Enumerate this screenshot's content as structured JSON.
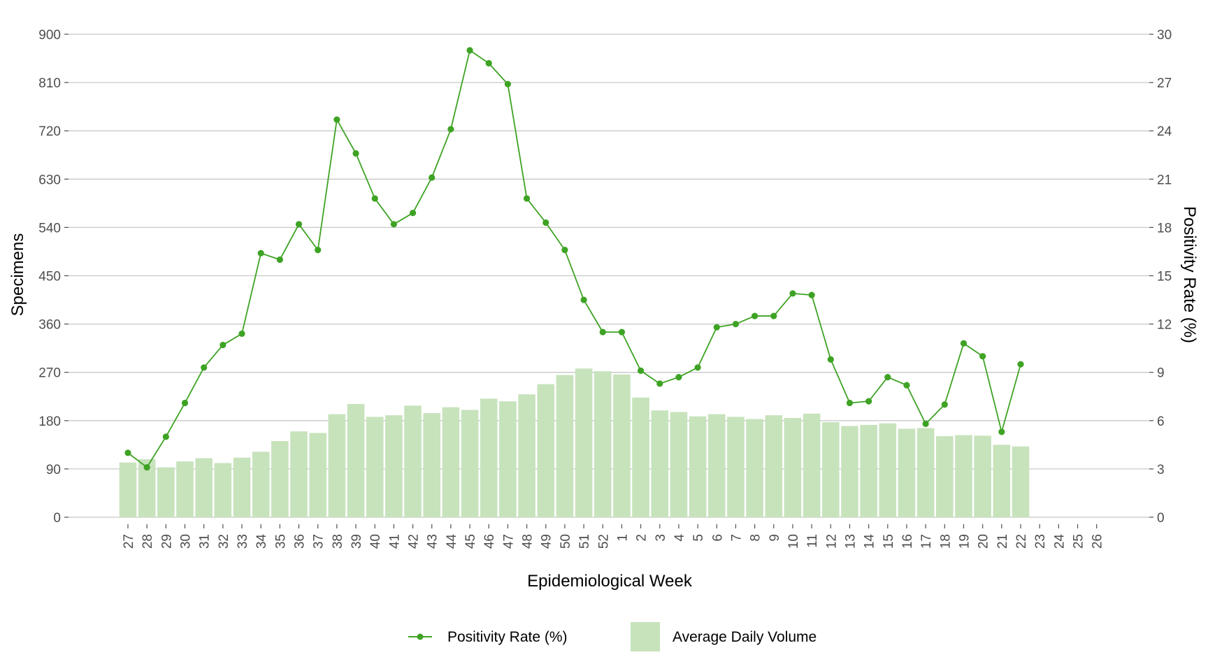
{
  "chart_data": {
    "type": "bar",
    "xlabel": "Epidemiological Week",
    "ylabel_left": "Specimens",
    "ylabel_right": "Positivity Rate (%)",
    "ylim_left": [
      0,
      900
    ],
    "ylim_right": [
      0,
      30
    ],
    "yticks_left": [
      0,
      90,
      180,
      270,
      360,
      450,
      540,
      630,
      720,
      810,
      900
    ],
    "yticks_right": [
      0,
      3,
      6,
      9,
      12,
      15,
      18,
      21,
      24,
      27,
      30
    ],
    "grid": true,
    "legend_position": "bottom",
    "categories": [
      "27",
      "28",
      "29",
      "30",
      "31",
      "32",
      "33",
      "34",
      "35",
      "36",
      "37",
      "38",
      "39",
      "40",
      "41",
      "42",
      "43",
      "44",
      "45",
      "46",
      "47",
      "48",
      "49",
      "50",
      "51",
      "52",
      "1",
      "2",
      "3",
      "4",
      "5",
      "6",
      "7",
      "8",
      "9",
      "10",
      "11",
      "12",
      "13",
      "14",
      "15",
      "16",
      "17",
      "18",
      "19",
      "20",
      "21",
      "22",
      "23",
      "24",
      "25",
      "26"
    ],
    "series": [
      {
        "name": "Average Daily Volume",
        "type": "bar",
        "axis": "left",
        "color": "#c7e3bc",
        "values": [
          102,
          108,
          93,
          104,
          110,
          101,
          111,
          122,
          142,
          160,
          157,
          192,
          211,
          187,
          190,
          208,
          194,
          205,
          200,
          221,
          216,
          229,
          248,
          265,
          277,
          272,
          266,
          223,
          199,
          196,
          188,
          192,
          187,
          183,
          190,
          185,
          193,
          177,
          170,
          172,
          175,
          165,
          166,
          151,
          153,
          152,
          135,
          132,
          null,
          null,
          null,
          null
        ]
      },
      {
        "name": "Positivity Rate (%)",
        "type": "line",
        "axis": "right",
        "color": "#3ea324",
        "values": [
          4.0,
          3.1,
          5.0,
          7.1,
          9.3,
          10.7,
          11.4,
          16.4,
          16.0,
          18.2,
          16.6,
          24.7,
          22.6,
          19.8,
          18.2,
          18.9,
          21.1,
          24.1,
          29.0,
          28.2,
          26.9,
          19.8,
          18.3,
          16.6,
          13.5,
          11.5,
          11.5,
          9.1,
          8.3,
          8.7,
          9.3,
          11.8,
          12.0,
          12.5,
          12.5,
          13.9,
          13.8,
          9.8,
          7.1,
          7.2,
          8.7,
          8.2,
          5.8,
          7.0,
          10.8,
          10.0,
          5.3,
          9.5,
          null,
          null,
          null,
          null
        ]
      }
    ]
  }
}
